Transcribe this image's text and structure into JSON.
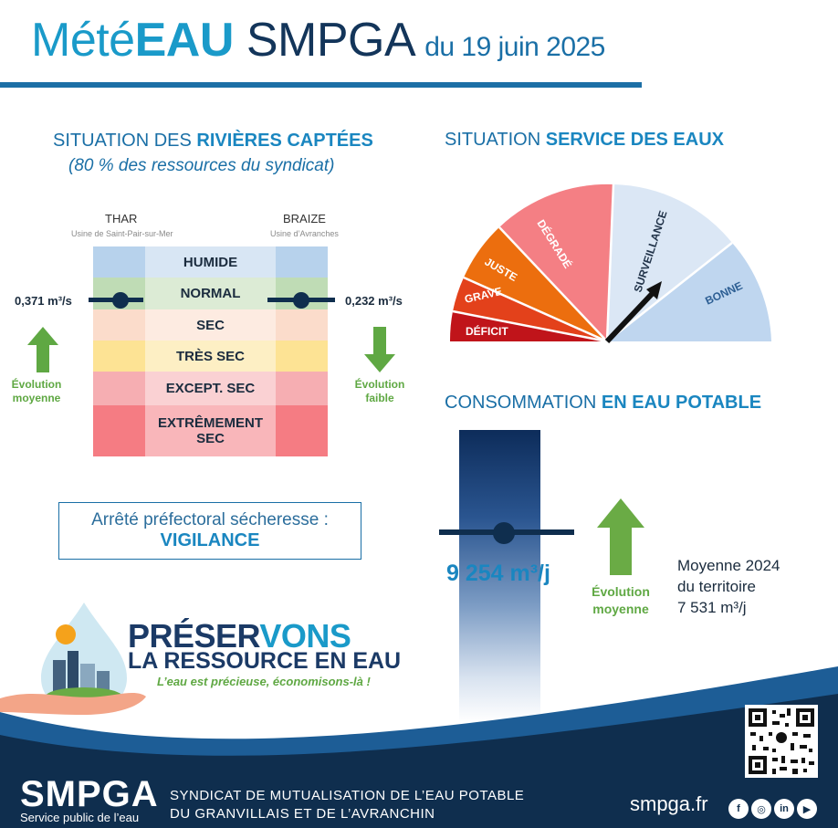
{
  "header": {
    "title_prefix": "Mété",
    "title_eau": "EAU",
    "title_org": "SMPGA",
    "date": "du 19 juin 2025"
  },
  "rivers": {
    "title_prefix": "SITUATION DES ",
    "title_bold": "RIVIÈRES CAPTÉES",
    "subtitle": "(80 % des ressources du syndicat)",
    "left": {
      "name": "THAR",
      "plant": "Usine de Saint-Pair-sur-Mer",
      "flow": "0,371 m³/s",
      "evolution_line1": "Évolution",
      "evolution_line2": "moyenne",
      "level": "NORMAL"
    },
    "right": {
      "name": "BRAIZE",
      "plant": "Usine d’Avranches",
      "flow": "0,232 m³/s",
      "evolution_line1": "Évolution",
      "evolution_line2": "faible",
      "level": "NORMAL"
    },
    "levels": [
      {
        "label": "HUMIDE",
        "side": "#b7d2ec",
        "mid": "#d8e6f4"
      },
      {
        "label": "NORMAL",
        "side": "#bfdcb5",
        "mid": "#dcebd5"
      },
      {
        "label": "SEC",
        "side": "#fbdccb",
        "mid": "#fdebe1"
      },
      {
        "label": "TRÈS SEC",
        "side": "#fde394",
        "mid": "#fdefc4"
      },
      {
        "label": "EXCEPT. SEC",
        "side": "#f6aeb2",
        "mid": "#fad1d3"
      },
      {
        "label": "EXTRÊMEMENT SEC",
        "side": "#f57c83",
        "mid": "#f9b6ba"
      }
    ]
  },
  "arrete": {
    "line1": "Arrêté préfectoral sécheresse :",
    "line2": "VIGILANCE"
  },
  "service": {
    "title_prefix": "SITUATION ",
    "title_bold": "SERVICE DES EAUX",
    "segments": [
      {
        "label": "DÉFICIT",
        "color": "#c0141a"
      },
      {
        "label": "GRAVE",
        "color": "#e3411b"
      },
      {
        "label": "JUSTE",
        "color": "#ec6e0e"
      },
      {
        "label": "DÉGRADÉ",
        "color": "#f47f84"
      },
      {
        "label": "SURVEILLANCE",
        "color": "#dbe7f5"
      },
      {
        "label": "BONNE",
        "color": "#bfd6ef"
      }
    ],
    "current": "SURVEILLANCE"
  },
  "consumption": {
    "title_prefix": "CONSOMMATION ",
    "title_bold": "EN EAU POTABLE",
    "value": "9 254 m³/j",
    "evolution_line1": "Évolution",
    "evolution_line2": "moyenne",
    "avg_line1": "Moyenne 2024",
    "avg_line2": "du territoire",
    "avg_line3": "7 531 m³/j"
  },
  "campaign": {
    "line1a": "PRÉSER",
    "line1b": "VONS",
    "line2": "LA RESSOURCE EN EAU",
    "line3": "L’eau est précieuse, économisons-là !"
  },
  "footer": {
    "logo": "SMPGA",
    "logo_sub": "Service public de l’eau",
    "syndicat_line1": "SYNDICAT DE MUTUALISATION DE L’EAU POTABLE",
    "syndicat_line2": "DU GRANVILLAIS ET DE L’AVRANCHIN",
    "site": "smpga.fr",
    "social": [
      "f",
      "◎",
      "in",
      "▶"
    ],
    "bg": "#0f2e4e"
  }
}
